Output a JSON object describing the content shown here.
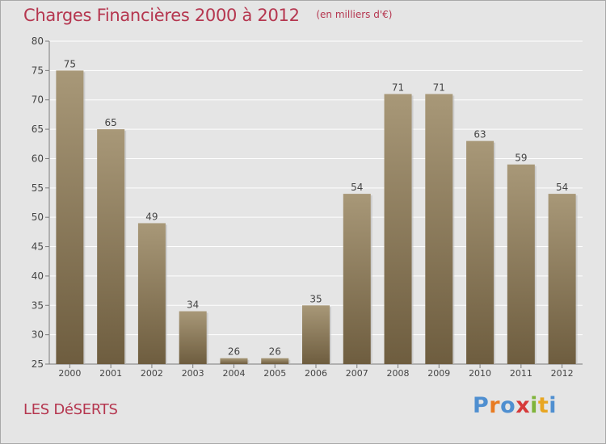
{
  "header": {
    "title": "Charges Financières 2000 à 2012",
    "unit": "(en milliers d'€)"
  },
  "footer": {
    "name": "LES DéSERTS",
    "brand": "Proxiti",
    "brand_colors": [
      "#4f8fd0",
      "#e87b22",
      "#4f8fd0",
      "#d63a3a",
      "#7fb43a",
      "#e8a622",
      "#4f8fd0"
    ]
  },
  "colors": {
    "bar_top": "#a89878",
    "bar_bottom": "#6e5d3f",
    "accent": "#b5364f"
  },
  "chart_data": {
    "type": "bar",
    "categories": [
      "2000",
      "2001",
      "2002",
      "2003",
      "2004",
      "2005",
      "2006",
      "2007",
      "2008",
      "2009",
      "2010",
      "2011",
      "2012"
    ],
    "values": [
      75,
      65,
      49,
      34,
      26,
      26,
      35,
      54,
      71,
      71,
      63,
      59,
      54
    ],
    "ylim": [
      25,
      80
    ],
    "yticks": [
      25,
      30,
      35,
      40,
      45,
      50,
      55,
      60,
      65,
      70,
      75,
      80
    ],
    "grid": true,
    "legend": "none"
  }
}
